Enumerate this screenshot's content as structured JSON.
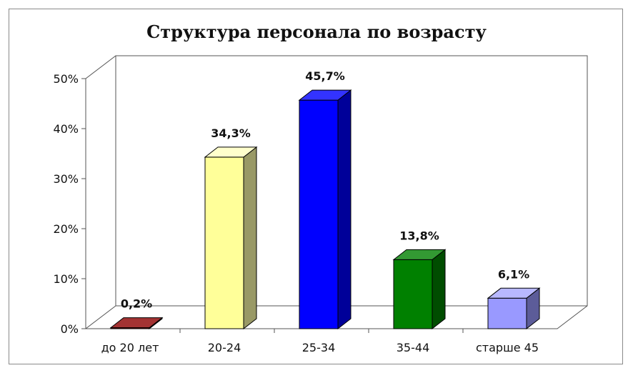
{
  "chart_data": {
    "type": "bar",
    "title": "Структура персонала по возрасту",
    "xlabel": "",
    "ylabel": "",
    "categories": [
      "до 20 лет",
      "20-24",
      "25-34",
      "35-44",
      "старше 45"
    ],
    "values": [
      0.2,
      34.3,
      45.7,
      13.8,
      6.1
    ],
    "data_labels": [
      "0,2%",
      "34,3%",
      "45,7%",
      "13,8%",
      "6,1%"
    ],
    "yticks": [
      "0%",
      "10%",
      "20%",
      "30%",
      "40%",
      "50%"
    ],
    "ylim": [
      0,
      50
    ],
    "grid": false,
    "legend": "none",
    "colors": [
      "#800000",
      "#FFFF99",
      "#0000FF",
      "#008000",
      "#9999FF"
    ],
    "side_colors": [
      "#4d0000",
      "#999966",
      "#000099",
      "#004d00",
      "#5c5c99"
    ],
    "top_colors": [
      "#a33333",
      "#ffffcc",
      "#3333ff",
      "#339933",
      "#b8b8ff"
    ]
  }
}
